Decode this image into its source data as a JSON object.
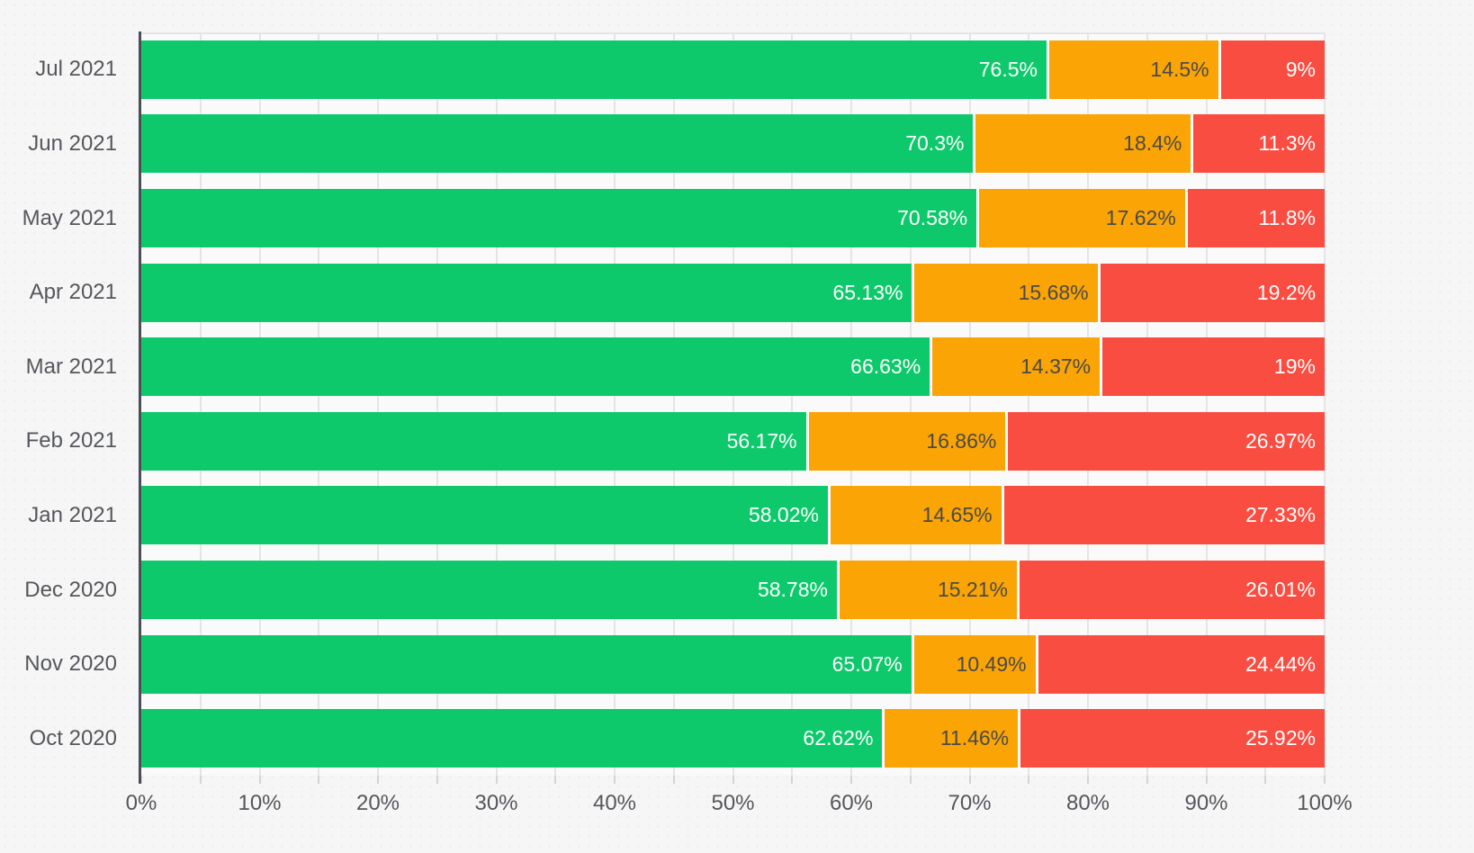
{
  "chart_data": {
    "type": "bar",
    "orientation": "horizontal",
    "stacked": true,
    "unit": "%",
    "legend": "none",
    "categories": [
      "Jul 2021",
      "Jun 2021",
      "May 2021",
      "Apr 2021",
      "Mar 2021",
      "Feb 2021",
      "Jan 2021",
      "Dec 2020",
      "Nov 2020",
      "Oct 2020"
    ],
    "series": [
      {
        "name": "green",
        "color": "#0ec96b",
        "label_color": "#ffffff",
        "values": [
          76.5,
          70.3,
          70.58,
          65.13,
          66.63,
          56.17,
          58.02,
          58.78,
          65.07,
          62.62
        ],
        "labels": [
          "76.5%",
          "70.3%",
          "70.58%",
          "65.13%",
          "66.63%",
          "56.17%",
          "58.02%",
          "58.78%",
          "65.07%",
          "62.62%"
        ]
      },
      {
        "name": "orange",
        "color": "#faa405",
        "label_color": "#4a4a4a",
        "values": [
          14.5,
          18.4,
          17.62,
          15.68,
          14.37,
          16.86,
          14.65,
          15.21,
          10.49,
          11.46
        ],
        "labels": [
          "14.5%",
          "18.4%",
          "17.62%",
          "15.68%",
          "14.37%",
          "16.86%",
          "14.65%",
          "15.21%",
          "10.49%",
          "11.46%"
        ]
      },
      {
        "name": "red",
        "color": "#fa4d42",
        "label_color": "#ffffff",
        "values": [
          9,
          11.3,
          11.8,
          19.2,
          19,
          26.97,
          27.33,
          26.01,
          24.44,
          25.92
        ],
        "labels": [
          "9%",
          "11.3%",
          "11.8%",
          "19.2%",
          "19%",
          "26.97%",
          "27.33%",
          "26.01%",
          "24.44%",
          "25.92%"
        ]
      }
    ],
    "x_axis": {
      "tick_labels": [
        "0%",
        "10%",
        "20%",
        "30%",
        "40%",
        "50%",
        "60%",
        "70%",
        "80%",
        "90%",
        "100%"
      ],
      "range": [
        0,
        100
      ],
      "minor_grid_step_pct": 5,
      "grid": "on"
    }
  },
  "colors": {
    "page_background": "#f6f6f6",
    "plot_background": "#fafafa",
    "gridline": "#e5e5e8",
    "axis_line": "#4b4e54",
    "tick": "#d4d4d8",
    "axis_text": "#55575c",
    "segment_separator": "#ffffff"
  }
}
